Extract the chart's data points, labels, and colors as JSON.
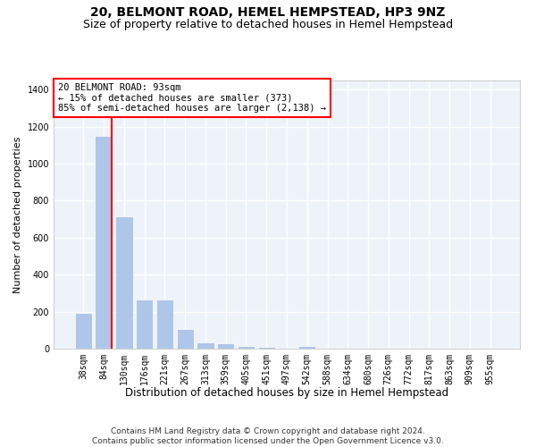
{
  "title1": "20, BELMONT ROAD, HEMEL HEMPSTEAD, HP3 9NZ",
  "title2": "Size of property relative to detached houses in Hemel Hempstead",
  "xlabel": "Distribution of detached houses by size in Hemel Hempstead",
  "ylabel": "Number of detached properties",
  "categories": [
    "38sqm",
    "84sqm",
    "130sqm",
    "176sqm",
    "221sqm",
    "267sqm",
    "313sqm",
    "359sqm",
    "405sqm",
    "451sqm",
    "497sqm",
    "542sqm",
    "588sqm",
    "634sqm",
    "680sqm",
    "726sqm",
    "772sqm",
    "817sqm",
    "863sqm",
    "909sqm",
    "955sqm"
  ],
  "values": [
    193,
    1148,
    714,
    267,
    267,
    105,
    35,
    28,
    15,
    12,
    0,
    15,
    0,
    0,
    0,
    0,
    0,
    0,
    0,
    0,
    0
  ],
  "bar_color": "#aec6e8",
  "highlight_bar_index": 1,
  "red_line_x": 1.4,
  "annotation_box_text": "20 BELMONT ROAD: 93sqm\n← 15% of detached houses are smaller (373)\n85% of semi-detached houses are larger (2,138) →",
  "ylim": [
    0,
    1450
  ],
  "yticks": [
    0,
    200,
    400,
    600,
    800,
    1000,
    1200,
    1400
  ],
  "background_color": "#eef3fa",
  "grid_color": "#ffffff",
  "footer1": "Contains HM Land Registry data © Crown copyright and database right 2024.",
  "footer2": "Contains public sector information licensed under the Open Government Licence v3.0.",
  "title1_fontsize": 10,
  "title2_fontsize": 9,
  "xlabel_fontsize": 8.5,
  "ylabel_fontsize": 8,
  "tick_fontsize": 7,
  "annotation_fontsize": 7.5,
  "footer_fontsize": 6.5
}
